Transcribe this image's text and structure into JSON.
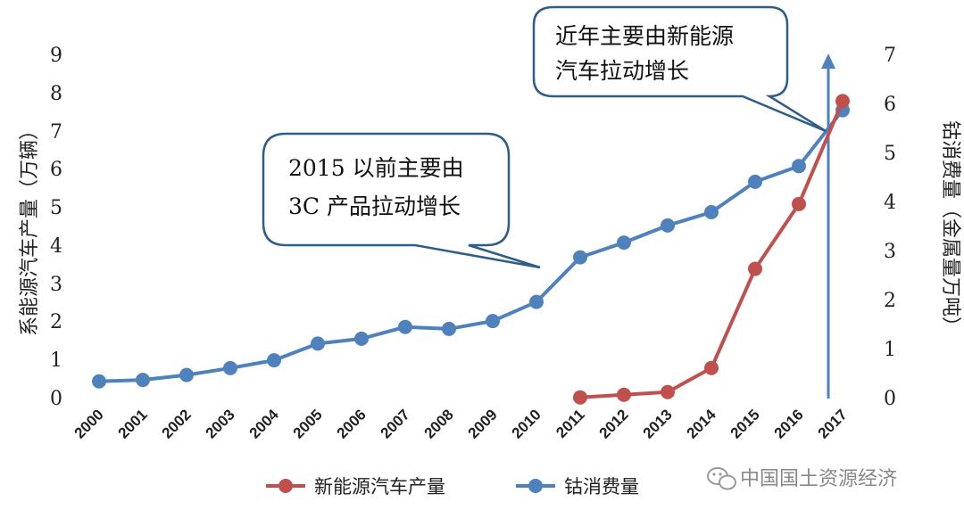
{
  "chart_data": {
    "type": "line",
    "categories": [
      "2000",
      "2001",
      "2002",
      "2003",
      "2004",
      "2005",
      "2006",
      "2007",
      "2008",
      "2009",
      "2010",
      "2011",
      "2012",
      "2013",
      "2014",
      "2015",
      "2016",
      "2017"
    ],
    "series": [
      {
        "name": "新能源汽车产量",
        "axis": "left",
        "color": "#c0504d",
        "values": [
          null,
          null,
          null,
          null,
          null,
          null,
          null,
          null,
          null,
          null,
          null,
          0.03,
          0.1,
          0.17,
          0.8,
          3.4,
          5.1,
          7.8
        ]
      },
      {
        "name": "钴消费量",
        "axis": "right",
        "color": "#4f81bd",
        "values": [
          0.35,
          0.38,
          0.48,
          0.62,
          0.78,
          1.12,
          1.22,
          1.46,
          1.42,
          1.58,
          1.97,
          2.88,
          3.18,
          3.53,
          3.8,
          4.42,
          4.74,
          5.88
        ]
      }
    ],
    "ylabel_left": "系能源汽车产量（万辆）",
    "ylabel_right": "钴消费量（金属量万吨）",
    "ylim_left": [
      0,
      9
    ],
    "ylim_right": [
      0,
      7
    ],
    "yticks_left": [
      "0",
      "1",
      "2",
      "3",
      "4",
      "5",
      "6",
      "7",
      "8",
      "9"
    ],
    "yticks_right": [
      "0",
      "1",
      "2",
      "3",
      "4",
      "5",
      "6",
      "7"
    ],
    "legend_position": "bottom",
    "grid": false,
    "annotations": [
      {
        "lines": [
          "2015 以前主要由",
          "3C 产品拉动增长"
        ]
      },
      {
        "lines": [
          "近年主要由新能源",
          "汽车拉动增长"
        ]
      }
    ],
    "watermark": "中国国土资源经济"
  },
  "colors": {
    "accent_blue": "#4f81bd",
    "accent_red": "#c0504d",
    "callout_border": "#2f5d8a"
  }
}
